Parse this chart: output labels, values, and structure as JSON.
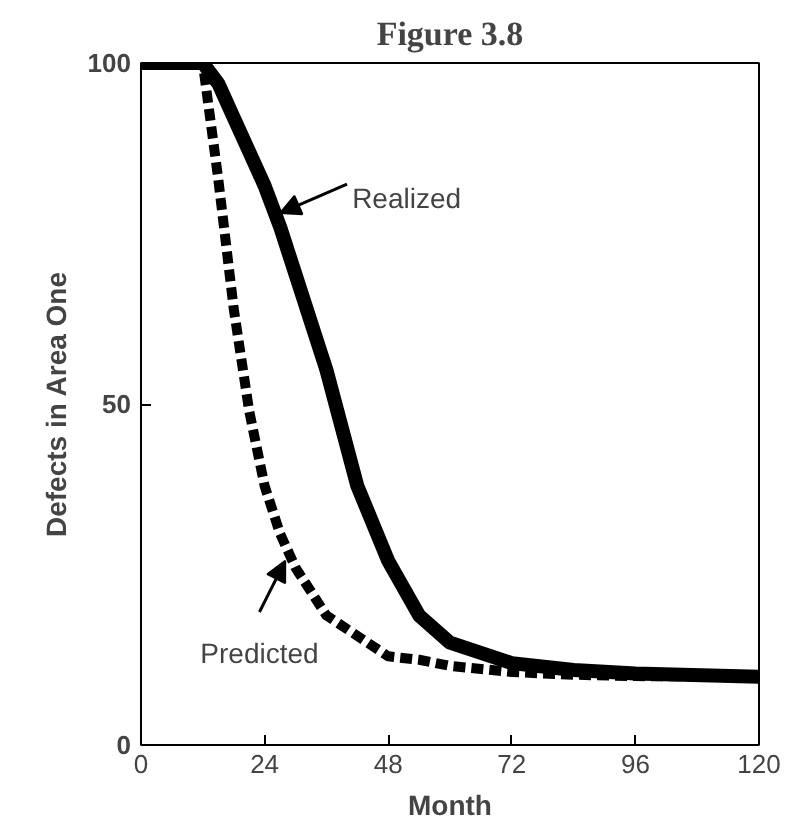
{
  "chart_data": {
    "type": "line",
    "title": "Figure 3.8",
    "xlabel": "Month",
    "ylabel": "Defects in Area One",
    "x": [
      0,
      12,
      15,
      18,
      21,
      24,
      27,
      30,
      36,
      42,
      48,
      54,
      60,
      72,
      84,
      96,
      120
    ],
    "series": [
      {
        "color": "#000000",
        "line_style": "solid",
        "values": [
          100,
          100,
          97,
          92,
          87,
          82,
          76,
          69,
          55,
          38,
          27,
          19,
          15,
          12,
          11,
          10.5,
          10
        ]
      },
      {
        "color": "#000000",
        "line_style": "dashed",
        "values": [
          100,
          100,
          83,
          64,
          49,
          38,
          31,
          26,
          19,
          16,
          13,
          12.5,
          11.6,
          10.7,
          10.3,
          10.1,
          10
        ]
      }
    ],
    "xlim": [
      0,
      120
    ],
    "xticks": [
      0,
      24,
      48,
      72,
      96,
      120
    ],
    "ylim": [
      0,
      100
    ],
    "yticks": [
      0,
      50,
      100
    ],
    "grid": false,
    "marker": "none",
    "annotations": [
      {
        "text": "Realized",
        "x": 27,
        "y": 78
      },
      {
        "text": "Predicted",
        "x": 28,
        "y": 27
      }
    ]
  }
}
